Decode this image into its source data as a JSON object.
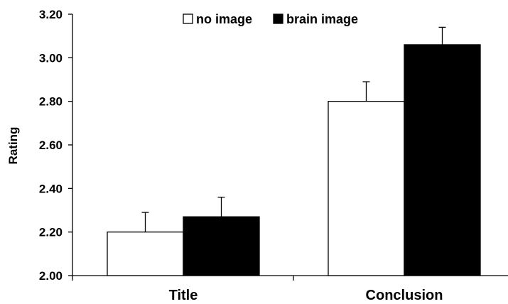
{
  "chart_data": {
    "type": "bar",
    "title": "",
    "xlabel": "",
    "ylabel": "Rating",
    "ylim": [
      2.0,
      3.2
    ],
    "yticks": [
      "2.00",
      "2.20",
      "2.40",
      "2.60",
      "2.80",
      "3.00",
      "3.20"
    ],
    "grid": false,
    "legend_position": "top",
    "categories": [
      "Title",
      "Conclusion"
    ],
    "series": [
      {
        "name": "no image",
        "color": "#ffffff",
        "values": [
          2.2,
          2.8
        ],
        "errors": [
          0.09,
          0.09
        ]
      },
      {
        "name": "brain image",
        "color": "#000000",
        "values": [
          2.27,
          3.06
        ],
        "errors": [
          0.09,
          0.08
        ]
      }
    ]
  }
}
